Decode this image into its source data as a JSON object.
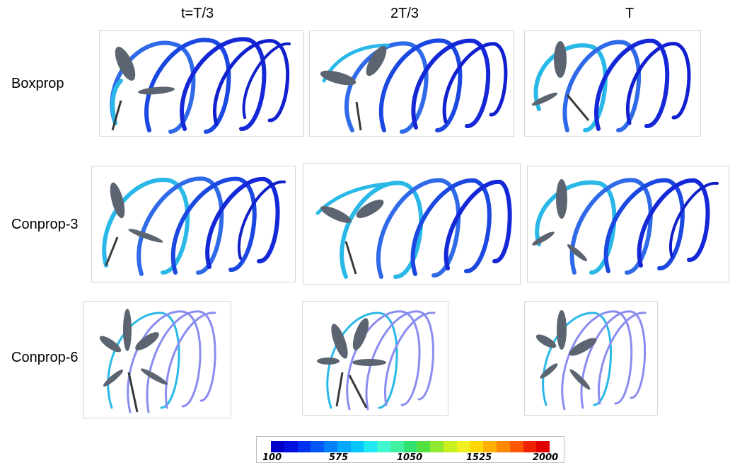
{
  "columns": [
    "t=T/3",
    "2T/3",
    "T"
  ],
  "rows": [
    "Boxprop",
    "Conprop-3",
    "Conprop-6"
  ],
  "colorbar": {
    "ticks": [
      "100",
      "575",
      "1050",
      "1525",
      "2000"
    ],
    "colors": [
      "#0000c8",
      "#0010e0",
      "#0030f0",
      "#0058f8",
      "#0080ff",
      "#00a8ff",
      "#00c8ff",
      "#20e8f0",
      "#40f8d0",
      "#40f0a0",
      "#30e070",
      "#50e040",
      "#90e830",
      "#c8f020",
      "#f0f020",
      "#ffd800",
      "#ffb000",
      "#ff8800",
      "#ff5800",
      "#f02000",
      "#e00000"
    ]
  },
  "colors": {
    "ribbon_dark": "#1020d8",
    "ribbon_mid": "#2f6ae8",
    "ribbon_light": "#29b8e8",
    "ribbon_faded": "#8a8cf0",
    "blade": "#5b6470"
  }
}
